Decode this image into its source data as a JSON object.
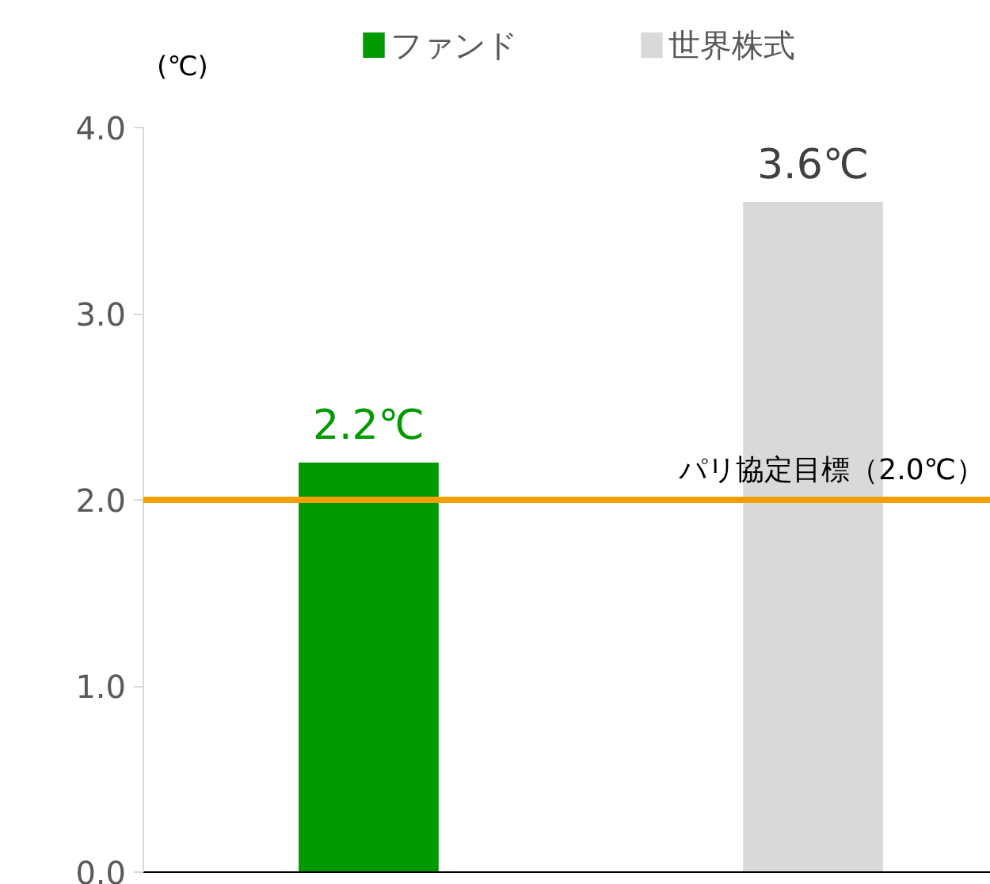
{
  "chart_data": {
    "type": "bar",
    "ylabel": "(℃)",
    "categories": [
      null,
      null
    ],
    "series": [
      {
        "name": "ファンド",
        "color": "#009900",
        "values": [
          2.2,
          null
        ],
        "value_labels": [
          "2.2℃",
          null
        ]
      },
      {
        "name": "世界株式",
        "color": "#d9d9d9",
        "values": [
          null,
          3.6
        ],
        "value_labels": [
          null,
          "3.6℃"
        ]
      }
    ],
    "ylim": [
      0,
      4
    ],
    "yticks": [
      {
        "value": 0,
        "label": "0.0"
      },
      {
        "value": 1,
        "label": "1.0"
      },
      {
        "value": 2,
        "label": "2.0"
      },
      {
        "value": 3,
        "label": "3.0"
      },
      {
        "value": 4,
        "label": "4.0"
      }
    ],
    "ref_lines": [
      {
        "axis": "y",
        "value": 2.0,
        "label": "パリ協定目標（2.0℃）",
        "color": "#f0a000"
      }
    ],
    "tick_labels": "y",
    "legend": "top",
    "grid": false
  }
}
